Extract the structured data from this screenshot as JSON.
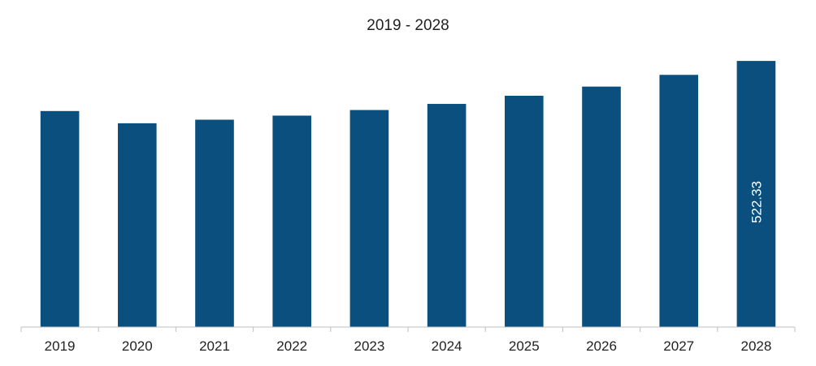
{
  "chart_data": {
    "type": "bar",
    "title": "2019 - 2028",
    "xlabel": "",
    "ylabel": "",
    "categories": [
      "2019",
      "2020",
      "2021",
      "2022",
      "2023",
      "2024",
      "2025",
      "2026",
      "2027",
      "2028"
    ],
    "values": [
      424.0,
      400.0,
      407.0,
      415.0,
      426.0,
      438.0,
      454.0,
      472.0,
      495.0,
      522.33
    ],
    "data_labels": [
      "",
      "",
      "",
      "",
      "",
      "",
      "",
      "",
      "",
      "522.33"
    ],
    "ylim": [
      0,
      540
    ],
    "grid": false,
    "legend": "none",
    "bar_color": "#0a4f7d",
    "axis_color": "#bfbfbf"
  }
}
